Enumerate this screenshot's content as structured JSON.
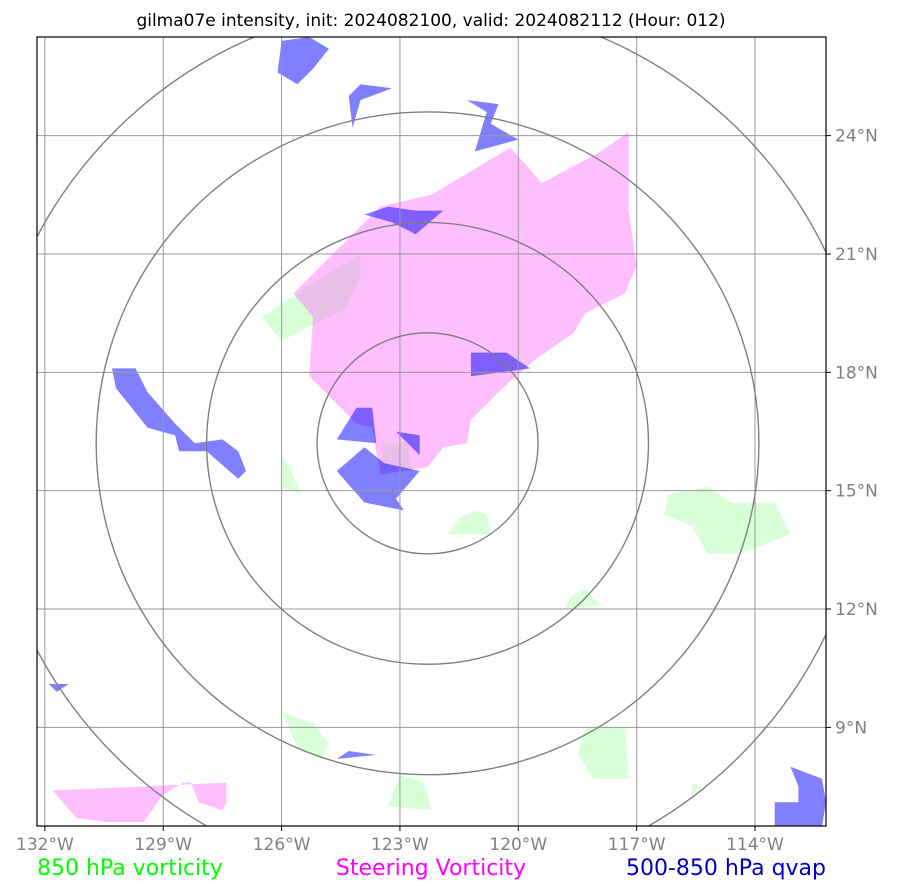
{
  "title": "gilma07e intensity, init: 2024082100, valid: 2024082112 (Hour: 012)",
  "chart_data": {
    "type": "map",
    "xlim": [
      -132.2,
      -112.2
    ],
    "ylim": [
      6.5,
      26.5
    ],
    "x_ticks": [
      {
        "value": -132,
        "label": "132°W"
      },
      {
        "value": -129,
        "label": "129°W"
      },
      {
        "value": -126,
        "label": "126°W"
      },
      {
        "value": -123,
        "label": "123°W"
      },
      {
        "value": -120,
        "label": "120°W"
      },
      {
        "value": -117,
        "label": "117°W"
      },
      {
        "value": -114,
        "label": "114°W"
      }
    ],
    "y_ticks": [
      {
        "value": 24,
        "label": "24°N"
      },
      {
        "value": 21,
        "label": "21°N"
      },
      {
        "value": 18,
        "label": "18°N"
      },
      {
        "value": 15,
        "label": "15°N"
      },
      {
        "value": 12,
        "label": "12°N"
      },
      {
        "value": 9,
        "label": "9°N"
      }
    ],
    "grid": true,
    "range_rings": {
      "center": {
        "lon": -122.3,
        "lat": 16.2
      },
      "radii_deg": [
        2.8,
        5.6,
        8.4,
        11.2
      ]
    },
    "legend": [
      {
        "label": "850 hPa vorticity",
        "color": "#00ff00"
      },
      {
        "label": "Steering Vorticity",
        "color": "#ff00ff"
      },
      {
        "label": "500-850 hPa qvap",
        "color": "#0000cc"
      }
    ],
    "layers": [
      {
        "name": "850 hPa vorticity",
        "fill": "#ccffcc",
        "opacity": 0.75,
        "polygons": [
          [
            [
              -124,
              21
            ],
            [
              -125.3,
              20.2
            ],
            [
              -126.5,
              19.4
            ],
            [
              -126,
              18.8
            ],
            [
              -124.4,
              19.6
            ],
            [
              -124,
              20.4
            ]
          ],
          [
            [
              -126,
              15.9
            ],
            [
              -126,
              15.1
            ],
            [
              -125.5,
              14.9
            ],
            [
              -125.8,
              15.6
            ]
          ],
          [
            [
              -123.4,
              16.2
            ],
            [
              -122.8,
              16.2
            ],
            [
              -122.7,
              15.5
            ],
            [
              -123.5,
              15.5
            ]
          ],
          [
            [
              -121.1,
              14.5
            ],
            [
              -120.8,
              14.4
            ],
            [
              -120.7,
              13.9
            ],
            [
              -121.8,
              13.9
            ],
            [
              -121.5,
              14.3
            ]
          ],
          [
            [
              -116.2,
              14.9
            ],
            [
              -115.2,
              15.1
            ],
            [
              -114.6,
              14.7
            ],
            [
              -113.5,
              14.7
            ],
            [
              -113.1,
              13.9
            ],
            [
              -114.4,
              13.4
            ],
            [
              -115.2,
              13.4
            ],
            [
              -115.6,
              14.1
            ],
            [
              -116.3,
              14.4
            ]
          ],
          [
            [
              -118.3,
              12.5
            ],
            [
              -117.9,
              12.1
            ],
            [
              -118.8,
              12
            ],
            [
              -118.7,
              12.3
            ]
          ],
          [
            [
              -126,
              9.4
            ],
            [
              -125.6,
              8.5
            ],
            [
              -125,
              8.2
            ],
            [
              -124.8,
              8.6
            ],
            [
              -125.2,
              9.1
            ]
          ],
          [
            [
              -123,
              7.8
            ],
            [
              -122.4,
              7.6
            ],
            [
              -122.2,
              6.9
            ],
            [
              -123.3,
              7
            ]
          ],
          [
            [
              -118.3,
              9
            ],
            [
              -117.3,
              9
            ],
            [
              -117.2,
              7.7
            ],
            [
              -118.1,
              7.7
            ],
            [
              -118.5,
              8.3
            ]
          ],
          [
            [
              -115.6,
              7.6
            ],
            [
              -115.4,
              7.5
            ],
            [
              -115.6,
              7.3
            ]
          ]
        ]
      },
      {
        "name": "Steering Vorticity",
        "fill": "#ff66ff",
        "opacity": 0.42,
        "polygons": [
          [
            [
              -123.5,
              22.2
            ],
            [
              -122.2,
              22.5
            ],
            [
              -120.2,
              23.7
            ],
            [
              -119.4,
              22.8
            ],
            [
              -117.9,
              23.6
            ],
            [
              -117.2,
              24.1
            ],
            [
              -117.2,
              22.1
            ],
            [
              -117,
              20.7
            ],
            [
              -117.3,
              20
            ],
            [
              -118.3,
              19.5
            ],
            [
              -118.6,
              19
            ],
            [
              -119.6,
              18.3
            ],
            [
              -120.4,
              17.6
            ],
            [
              -121.2,
              16.8
            ],
            [
              -121.3,
              16.2
            ],
            [
              -121.9,
              16.1
            ],
            [
              -122.3,
              15.6
            ],
            [
              -123.5,
              15.4
            ],
            [
              -123.7,
              16.6
            ],
            [
              -124.1,
              16.7
            ],
            [
              -125.3,
              17.9
            ],
            [
              -125.2,
              19.4
            ],
            [
              -125.7,
              20
            ],
            [
              -124.6,
              21.1
            ]
          ],
          [
            [
              -131.8,
              7.4
            ],
            [
              -131.2,
              6.7
            ],
            [
              -130.4,
              6.6
            ],
            [
              -129.5,
              6.6
            ],
            [
              -129,
              7.3
            ],
            [
              -128.5,
              7.6
            ],
            [
              -128.3,
              7.6
            ],
            [
              -128.1,
              7.1
            ],
            [
              -127.5,
              6.9
            ],
            [
              -127.4,
              7.1
            ],
            [
              -127.4,
              7.6
            ]
          ],
          [
            [
              -126.2,
              26.5
            ],
            [
              -126,
              26.4
            ]
          ]
        ]
      },
      {
        "name": "500-850 hPa qvap",
        "fill": "#0000ff",
        "opacity": 0.5,
        "polygons": [
          [
            [
              -126,
              26.4
            ],
            [
              -125.3,
              26.5
            ],
            [
              -124.8,
              26.2
            ],
            [
              -125.2,
              25.7
            ],
            [
              -125.6,
              25.3
            ],
            [
              -126.1,
              25.6
            ]
          ],
          [
            [
              -124,
              25.3
            ],
            [
              -123.2,
              25.2
            ],
            [
              -124,
              24.9
            ],
            [
              -124.2,
              24.2
            ],
            [
              -124.3,
              25
            ]
          ],
          [
            [
              -122.6,
              22.1
            ],
            [
              -121.9,
              22.1
            ],
            [
              -122.6,
              21.5
            ],
            [
              -123.2,
              21.8
            ],
            [
              -123.9,
              22
            ],
            [
              -123.3,
              22.2
            ]
          ],
          [
            [
              -121.3,
              24.9
            ],
            [
              -120.5,
              24.8
            ],
            [
              -120.7,
              24.3
            ],
            [
              -120,
              23.9
            ],
            [
              -121.1,
              23.6
            ],
            [
              -120.8,
              24.6
            ]
          ],
          [
            [
              -121.2,
              18.5
            ],
            [
              -120.3,
              18.5
            ],
            [
              -119.7,
              18.1
            ],
            [
              -121.2,
              17.9
            ]
          ],
          [
            [
              -124.1,
              17.1
            ],
            [
              -123.7,
              17.1
            ],
            [
              -123.6,
              16.2
            ],
            [
              -124.6,
              16.3
            ]
          ],
          [
            [
              -123.1,
              16.5
            ],
            [
              -122.5,
              15.9
            ],
            [
              -122.5,
              16.4
            ]
          ],
          [
            [
              -123.4,
              15.7
            ],
            [
              -122.5,
              15.5
            ],
            [
              -123.1,
              14.8
            ],
            [
              -122.9,
              14.5
            ],
            [
              -123.9,
              14.7
            ],
            [
              -124.6,
              15.5
            ],
            [
              -123.9,
              16.1
            ]
          ],
          [
            [
              -130.3,
              18.1
            ],
            [
              -129.7,
              18.1
            ],
            [
              -129.4,
              17.5
            ],
            [
              -128.7,
              16.7
            ],
            [
              -128.2,
              16.2
            ],
            [
              -127.5,
              16.3
            ],
            [
              -127.1,
              16
            ],
            [
              -126.9,
              15.5
            ],
            [
              -127.1,
              15.3
            ],
            [
              -127.9,
              16
            ],
            [
              -128.6,
              16
            ],
            [
              -128.7,
              16.4
            ],
            [
              -129.4,
              16.6
            ],
            [
              -130.2,
              17.6
            ]
          ],
          [
            [
              -131.9,
              10.1
            ],
            [
              -131.4,
              10.1
            ],
            [
              -131.7,
              9.9
            ]
          ],
          [
            [
              -124.3,
              8.4
            ],
            [
              -123.6,
              8.3
            ],
            [
              -124.6,
              8.2
            ]
          ],
          [
            [
              -112.3,
              7.7
            ],
            [
              -112.2,
              7.1
            ],
            [
              -112.3,
              6.5
            ],
            [
              -113.5,
              6.5
            ],
            [
              -113.5,
              7.1
            ],
            [
              -112.9,
              7.1
            ],
            [
              -112.9,
              7.5
            ],
            [
              -113.1,
              8
            ]
          ]
        ]
      }
    ]
  }
}
